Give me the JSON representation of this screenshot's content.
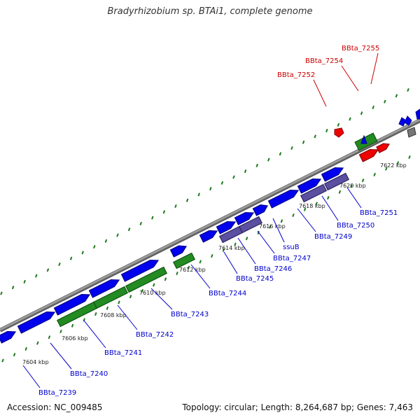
{
  "title": "Bradyrhizobium sp. BTAi1, complete genome",
  "accession": "Accession: NC_009485",
  "topology": "Topology: circular; Length: 8,264,687 bp; Genes: 7,463",
  "colors": {
    "forward": "#0000ee",
    "forward_dark": "#00008a",
    "rna": "#228b22",
    "rna_dark": "#115511",
    "highlight": "#ee0000",
    "highlight_dark": "#8a0000",
    "operon": "#5a4fa0",
    "operon_dark": "#2e2760",
    "other": "#777777",
    "backbone": "#9a9a9a",
    "dots": "#1e7a1e",
    "label_blue": "#0000cc",
    "label_red": "#cc0000"
  },
  "ticks": [
    "7604 kbp",
    "7606 kbp",
    "7608 kbp",
    "7610 kbp",
    "7612 kbp",
    "7614 kbp",
    "7616 kbp",
    "7618 kbp",
    "7620 kbp",
    "7622 kbp"
  ],
  "bottom_labels": [
    "BBta_7239",
    "BBta_7240",
    "BBta_7241",
    "BBta_7242",
    "BBta_7243",
    "BBta_7244",
    "BBta_7245",
    "BBta_7246",
    "ssuB",
    "BBta_7247",
    "BBta_7249",
    "BBta_7250",
    "BBta_7251"
  ],
  "top_labels": [
    "BBta_7252",
    "BBta_7254",
    "BBta_7255"
  ]
}
